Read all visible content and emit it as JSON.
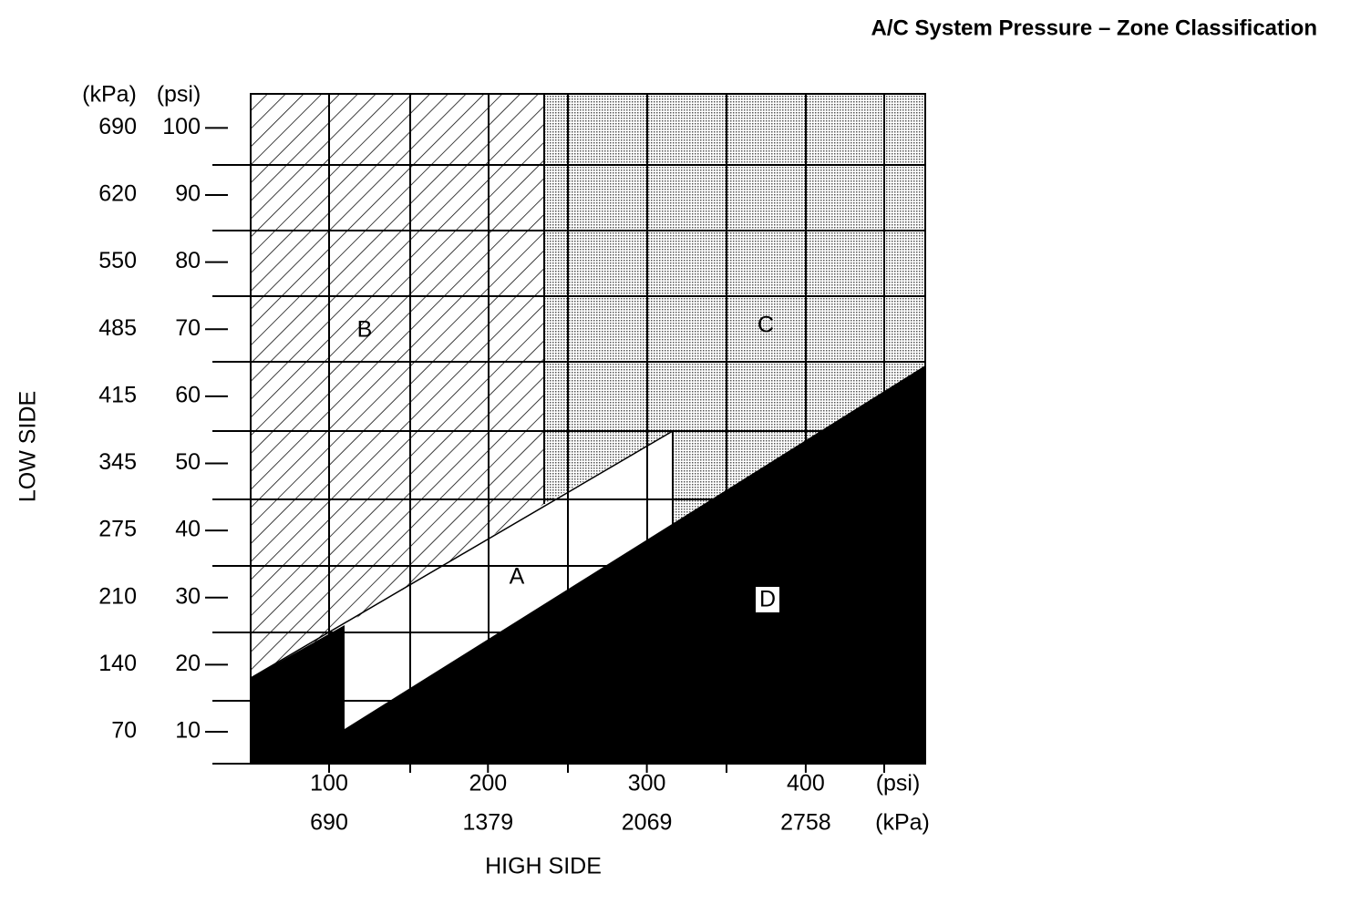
{
  "title": "A/C System Pressure – Zone Classification",
  "y_axis": {
    "label": "LOW SIDE",
    "units": [
      "(kPa)",
      "(psi)"
    ],
    "ticks": [
      {
        "psi": 100,
        "kpa": 690
      },
      {
        "psi": 90,
        "kpa": 620
      },
      {
        "psi": 80,
        "kpa": 550
      },
      {
        "psi": 70,
        "kpa": 485
      },
      {
        "psi": 60,
        "kpa": 415
      },
      {
        "psi": 50,
        "kpa": 345
      },
      {
        "psi": 40,
        "kpa": 275
      },
      {
        "psi": 30,
        "kpa": 210
      },
      {
        "psi": 20,
        "kpa": 140
      },
      {
        "psi": 10,
        "kpa": 70
      }
    ]
  },
  "x_axis": {
    "label": "HIGH SIDE",
    "units": [
      "(psi)",
      "(kPa)"
    ],
    "ticks": [
      {
        "psi": 100,
        "kpa": 690
      },
      {
        "psi": 200,
        "kpa": 1379
      },
      {
        "psi": 300,
        "kpa": 2069
      },
      {
        "psi": 400,
        "kpa": 2758
      }
    ]
  },
  "zones": [
    "A",
    "B",
    "C",
    "D"
  ]
}
